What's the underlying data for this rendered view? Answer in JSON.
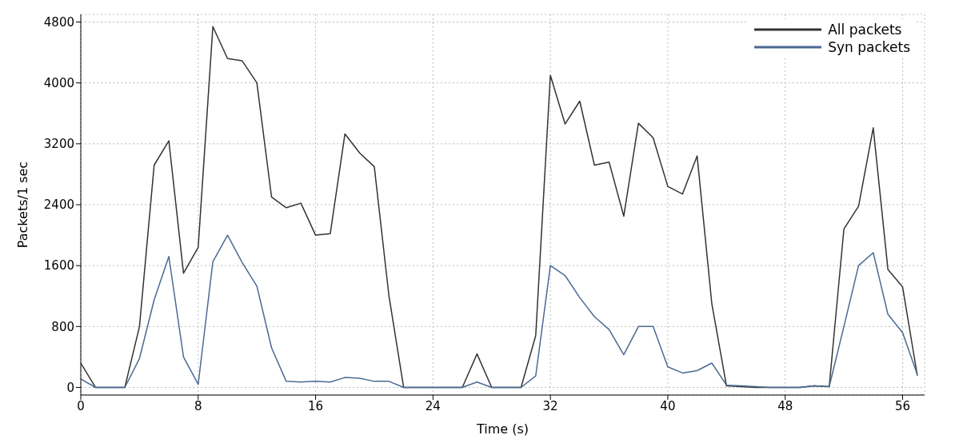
{
  "chart_data": {
    "type": "line",
    "xlabel": "Time (s)",
    "ylabel": "Packets/1 sec",
    "x": [
      0,
      1,
      2,
      3,
      4,
      5,
      6,
      7,
      8,
      9,
      10,
      11,
      12,
      13,
      14,
      15,
      16,
      17,
      18,
      19,
      20,
      21,
      22,
      23,
      24,
      25,
      26,
      27,
      28,
      29,
      30,
      31,
      32,
      33,
      34,
      35,
      36,
      37,
      38,
      39,
      40,
      41,
      42,
      43,
      44,
      45,
      46,
      47,
      48,
      49,
      50,
      51,
      52,
      53,
      54,
      55,
      56,
      57
    ],
    "series": [
      {
        "name": "All packets",
        "color": "#333333",
        "values": [
          320,
          0,
          0,
          0,
          800,
          2920,
          3240,
          1500,
          1840,
          4740,
          4320,
          4290,
          4000,
          2500,
          2360,
          2420,
          2000,
          2020,
          3330,
          3080,
          2900,
          1200,
          0,
          0,
          0,
          0,
          0,
          440,
          0,
          0,
          0,
          680,
          4100,
          3460,
          3760,
          2920,
          2960,
          2250,
          3470,
          3280,
          2640,
          2540,
          3040,
          1100,
          20,
          10,
          0,
          0,
          0,
          0,
          20,
          10,
          2080,
          2380,
          3410,
          1550,
          1320,
          160
        ]
      },
      {
        "name": "Syn packets",
        "color": "#4a6a93",
        "values": [
          110,
          0,
          0,
          0,
          380,
          1150,
          1720,
          400,
          40,
          1650,
          2000,
          1640,
          1330,
          520,
          80,
          70,
          80,
          70,
          130,
          120,
          80,
          80,
          0,
          0,
          0,
          0,
          0,
          70,
          0,
          0,
          0,
          150,
          1600,
          1470,
          1180,
          930,
          760,
          430,
          800,
          800,
          270,
          190,
          220,
          320,
          30,
          20,
          10,
          0,
          0,
          0,
          20,
          10,
          800,
          1600,
          1770,
          960,
          720,
          170
        ]
      }
    ],
    "xlim": [
      0,
      57.5
    ],
    "xticks": [
      0,
      8,
      16,
      24,
      32,
      40,
      48,
      56
    ],
    "ylim": [
      -100,
      4900
    ],
    "yticks": [
      0,
      800,
      1600,
      2400,
      3200,
      4000,
      4800
    ],
    "grid": true,
    "legend": "top right",
    "marker": "none",
    "line_style": "solid"
  }
}
